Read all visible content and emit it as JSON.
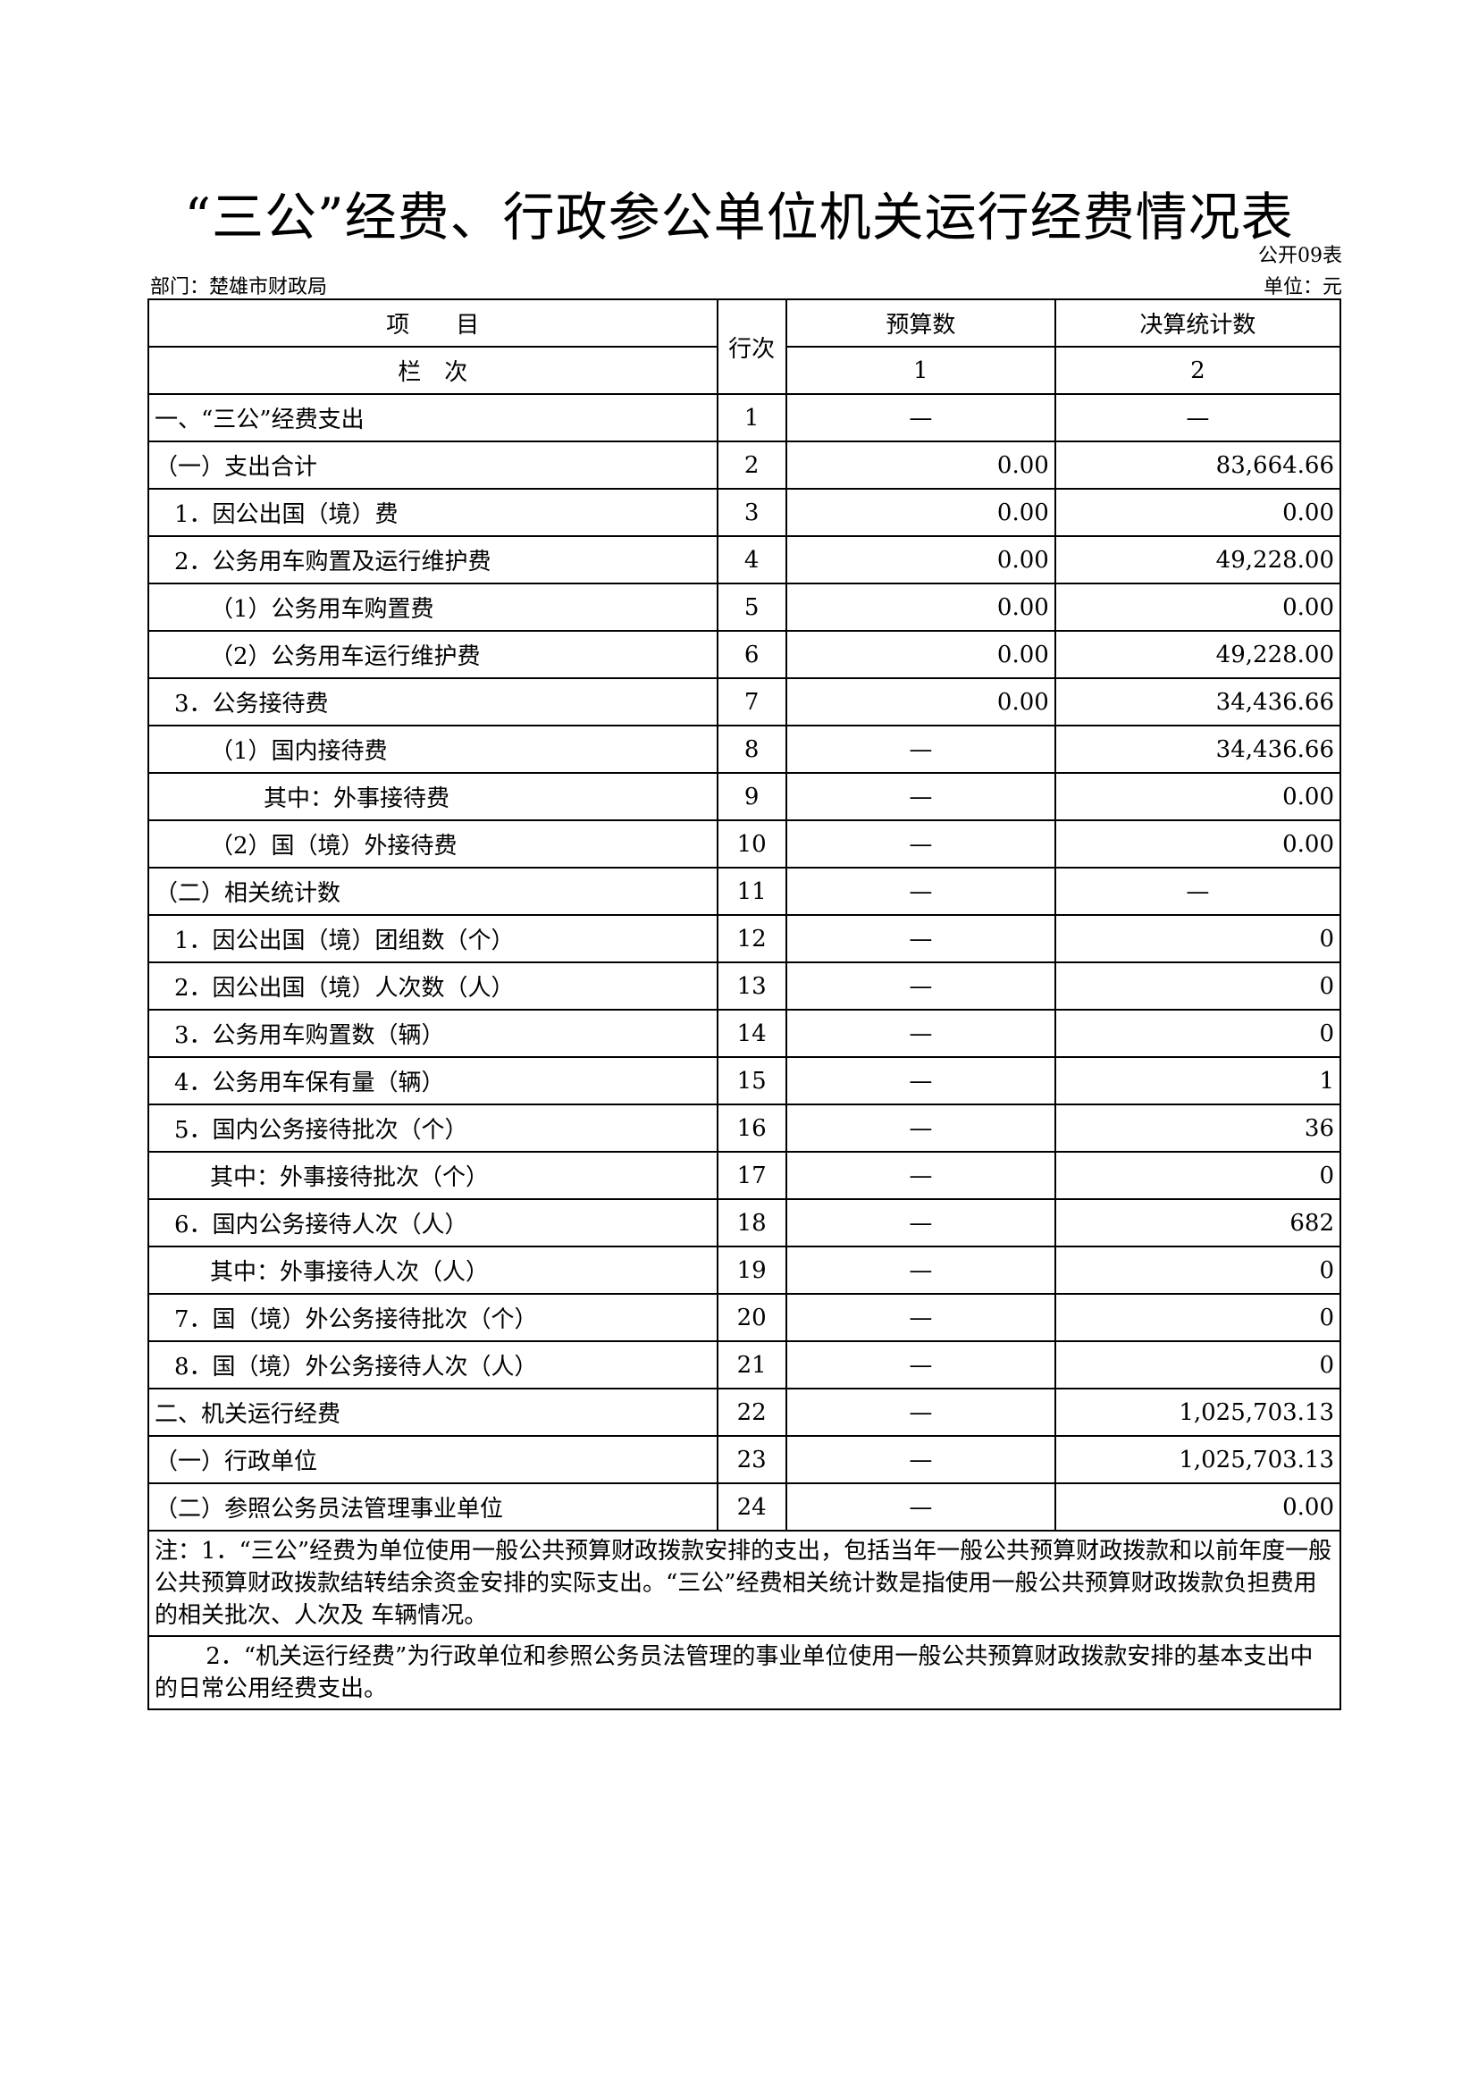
{
  "title": "“三公”经费、行政参公单位机关运行经费情况表",
  "table_code": "公开09表",
  "department": "部门：楚雄市财政局",
  "unit": "单位：元",
  "header": {
    "item": "项　　目",
    "row_no": "行次",
    "budget": "预算数",
    "final": "决算统计数",
    "column_label": "栏　次",
    "col1": "1",
    "col2": "2"
  },
  "rows": [
    {
      "item": "一、“三公”经费支出",
      "no": "1",
      "budget": "—",
      "final": "—",
      "indent": 0
    },
    {
      "item": "（一）支出合计",
      "no": "2",
      "budget": "0.00",
      "final": "83,664.66",
      "indent": 0
    },
    {
      "item": "1．因公出国（境）费",
      "no": "3",
      "budget": "0.00",
      "final": "0.00",
      "indent": 1
    },
    {
      "item": "2．公务用车购置及运行维护费",
      "no": "4",
      "budget": "0.00",
      "final": "49,228.00",
      "indent": 1
    },
    {
      "item": "（1）公务用车购置费",
      "no": "5",
      "budget": "0.00",
      "final": "0.00",
      "indent": 2
    },
    {
      "item": "（2）公务用车运行维护费",
      "no": "6",
      "budget": "0.00",
      "final": "49,228.00",
      "indent": 2
    },
    {
      "item": "3．公务接待费",
      "no": "7",
      "budget": "0.00",
      "final": "34,436.66",
      "indent": 1
    },
    {
      "item": "（1）国内接待费",
      "no": "8",
      "budget": "—",
      "final": "34,436.66",
      "indent": 2
    },
    {
      "item": "其中：外事接待费",
      "no": "9",
      "budget": "—",
      "final": "0.00",
      "indent": 3
    },
    {
      "item": "（2）国（境）外接待费",
      "no": "10",
      "budget": "—",
      "final": "0.00",
      "indent": 2
    },
    {
      "item": "（二）相关统计数",
      "no": "11",
      "budget": "—",
      "final": "—",
      "indent": 0
    },
    {
      "item": "1．因公出国（境）团组数（个）",
      "no": "12",
      "budget": "—",
      "final": "0",
      "indent": 1
    },
    {
      "item": "2．因公出国（境）人次数（人）",
      "no": "13",
      "budget": "—",
      "final": "0",
      "indent": 1
    },
    {
      "item": "3．公务用车购置数（辆）",
      "no": "14",
      "budget": "—",
      "final": "0",
      "indent": 1
    },
    {
      "item": "4．公务用车保有量（辆）",
      "no": "15",
      "budget": "—",
      "final": "1",
      "indent": 1
    },
    {
      "item": "5．国内公务接待批次（个）",
      "no": "16",
      "budget": "—",
      "final": "36",
      "indent": 1
    },
    {
      "item": "其中：外事接待批次（个）",
      "no": "17",
      "budget": "—",
      "final": "0",
      "indent": 2
    },
    {
      "item": "6．国内公务接待人次（人）",
      "no": "18",
      "budget": "—",
      "final": "682",
      "indent": 1
    },
    {
      "item": "其中：外事接待人次（人）",
      "no": "19",
      "budget": "—",
      "final": "0",
      "indent": 2
    },
    {
      "item": "7．国（境）外公务接待批次（个）",
      "no": "20",
      "budget": "—",
      "final": "0",
      "indent": 1
    },
    {
      "item": "8．国（境）外公务接待人次（人）",
      "no": "21",
      "budget": "—",
      "final": "0",
      "indent": 1
    },
    {
      "item": "二、机关运行经费",
      "no": "22",
      "budget": "—",
      "final": "1,025,703.13",
      "indent": 0
    },
    {
      "item": "（一）行政单位",
      "no": "23",
      "budget": "—",
      "final": "1,025,703.13",
      "indent": 0
    },
    {
      "item": "（二）参照公务员法管理事业单位",
      "no": "24",
      "budget": "—",
      "final": "0.00",
      "indent": 0
    }
  ],
  "notes": [
    "注：1．“三公”经费为单位使用一般公共预算财政拨款安排的支出，包括当年一般公共预算财政拨款和以前年度一般公共预算财政拨款结转结余资金安排的实际支出。“三公”经费相关统计数是指使用一般公共预算财政拨款负担费用的相关批次、人次及 车辆情况。",
    "2．“机关运行经费”为行政单位和参照公务员法管理的事业单位使用一般公共预算财政拨款安排的基本支出中的日常公用经费支出。"
  ]
}
